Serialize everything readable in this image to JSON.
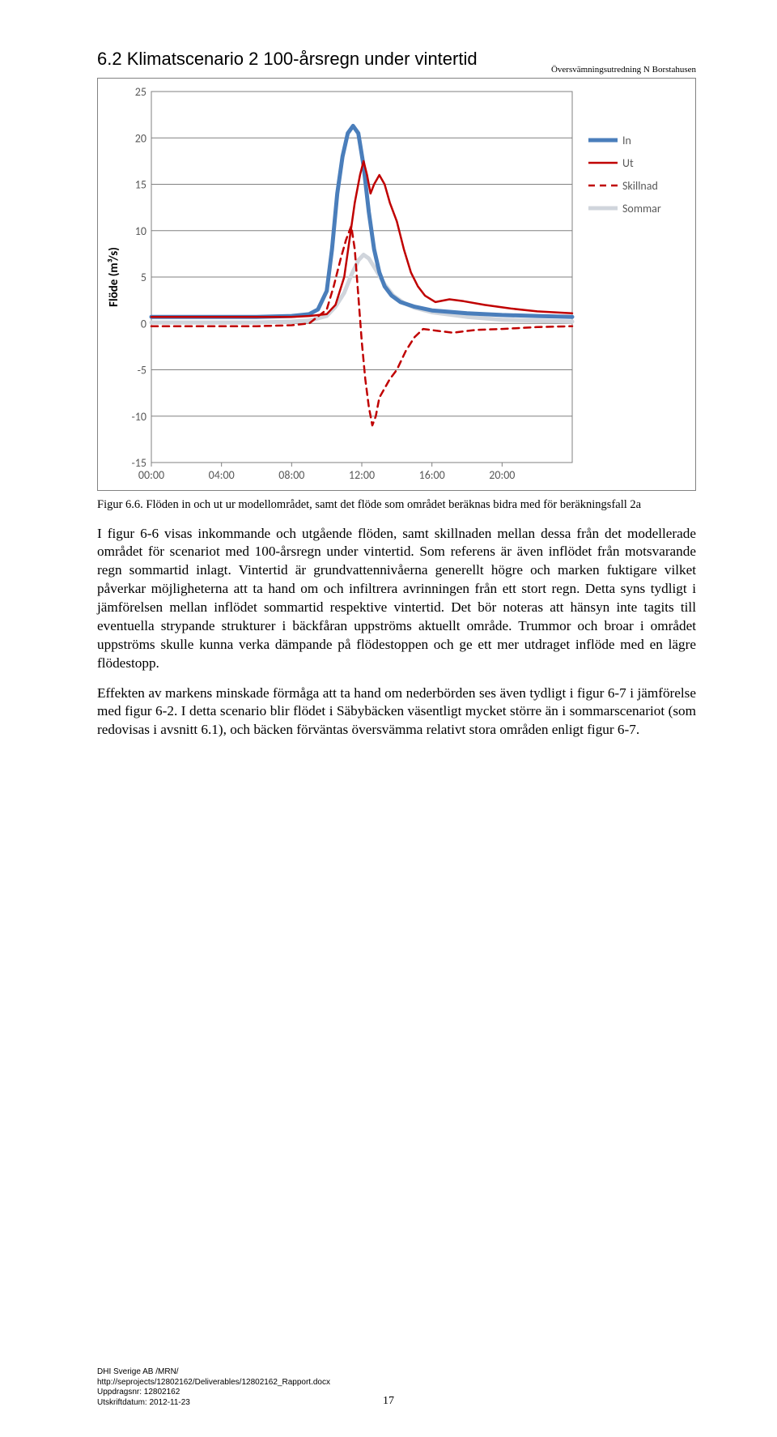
{
  "header": {
    "doc_title": "Översvämningsutredning N Borstahusen"
  },
  "section": {
    "heading": "6.2  Klimatscenario 2 100-årsregn under vintertid"
  },
  "chart": {
    "type": "line",
    "ylabel": "Flöde (m³/s)",
    "ylabel_fontsize": 15,
    "xlabels": [
      "00:00",
      "04:00",
      "08:00",
      "12:00",
      "16:00",
      "20:00"
    ],
    "yticks": [
      -15,
      -10,
      -5,
      0,
      5,
      10,
      15,
      20,
      25
    ],
    "xlim": [
      0,
      24
    ],
    "ylim": [
      -15,
      25
    ],
    "grid_color": "#808080",
    "border_color": "#828282",
    "background_color": "#ffffff",
    "tick_fontsize": 14,
    "legend_fontsize": 14,
    "line_width_thick": 5,
    "line_width_thin": 2.5,
    "series": [
      {
        "name": "In",
        "color": "#4a7ebb",
        "width": 5,
        "dash": "none",
        "points": [
          [
            0,
            0.7
          ],
          [
            2,
            0.7
          ],
          [
            4,
            0.7
          ],
          [
            6,
            0.7
          ],
          [
            8,
            0.8
          ],
          [
            9,
            1.0
          ],
          [
            9.5,
            1.5
          ],
          [
            10,
            3.5
          ],
          [
            10.3,
            8
          ],
          [
            10.6,
            14
          ],
          [
            10.9,
            18
          ],
          [
            11.2,
            20.5
          ],
          [
            11.5,
            21.3
          ],
          [
            11.8,
            20.5
          ],
          [
            12.1,
            17
          ],
          [
            12.4,
            12
          ],
          [
            12.7,
            8
          ],
          [
            13,
            5.5
          ],
          [
            13.3,
            4
          ],
          [
            13.7,
            3
          ],
          [
            14.2,
            2.3
          ],
          [
            15,
            1.8
          ],
          [
            16,
            1.4
          ],
          [
            18,
            1.1
          ],
          [
            20,
            0.9
          ],
          [
            22,
            0.8
          ],
          [
            24,
            0.7
          ]
        ]
      },
      {
        "name": "Ut",
        "color": "#c00000",
        "width": 2.5,
        "dash": "none",
        "points": [
          [
            0,
            0.7
          ],
          [
            2,
            0.7
          ],
          [
            4,
            0.7
          ],
          [
            6,
            0.7
          ],
          [
            8,
            0.7
          ],
          [
            9,
            0.8
          ],
          [
            10,
            1.0
          ],
          [
            10.5,
            2
          ],
          [
            11,
            5
          ],
          [
            11.3,
            9
          ],
          [
            11.6,
            13
          ],
          [
            11.9,
            16
          ],
          [
            12.1,
            17.5
          ],
          [
            12.3,
            16
          ],
          [
            12.5,
            14
          ],
          [
            12.7,
            15
          ],
          [
            13,
            16
          ],
          [
            13.3,
            15
          ],
          [
            13.6,
            13
          ],
          [
            14,
            11
          ],
          [
            14.4,
            8
          ],
          [
            14.8,
            5.5
          ],
          [
            15.2,
            4
          ],
          [
            15.6,
            3
          ],
          [
            16.2,
            2.3
          ],
          [
            17,
            2.6
          ],
          [
            17.8,
            2.4
          ],
          [
            19,
            2
          ],
          [
            20.5,
            1.6
          ],
          [
            22,
            1.3
          ],
          [
            24,
            1.1
          ]
        ]
      },
      {
        "name": "Skillnad",
        "color": "#c00000",
        "width": 2.5,
        "dash": "8 6",
        "points": [
          [
            0,
            -0.3
          ],
          [
            2,
            -0.3
          ],
          [
            4,
            -0.3
          ],
          [
            6,
            -0.3
          ],
          [
            8,
            -0.2
          ],
          [
            9,
            0
          ],
          [
            10,
            1.5
          ],
          [
            10.4,
            4
          ],
          [
            10.8,
            7
          ],
          [
            11.1,
            9
          ],
          [
            11.4,
            10.5
          ],
          [
            11.6,
            8
          ],
          [
            11.8,
            3
          ],
          [
            12,
            -2
          ],
          [
            12.2,
            -6
          ],
          [
            12.4,
            -9
          ],
          [
            12.6,
            -11
          ],
          [
            12.8,
            -10
          ],
          [
            13,
            -8
          ],
          [
            13.3,
            -7
          ],
          [
            13.6,
            -6
          ],
          [
            14,
            -5
          ],
          [
            14.5,
            -3
          ],
          [
            15,
            -1.5
          ],
          [
            15.5,
            -0.6
          ],
          [
            16.3,
            -0.8
          ],
          [
            17.2,
            -1.0
          ],
          [
            18.5,
            -0.7
          ],
          [
            20,
            -0.6
          ],
          [
            22,
            -0.4
          ],
          [
            24,
            -0.3
          ]
        ]
      },
      {
        "name": "Sommar",
        "color": "#d0d5dc",
        "width": 5,
        "dash": "none",
        "points": [
          [
            0,
            0.1
          ],
          [
            2,
            0.1
          ],
          [
            4,
            0.1
          ],
          [
            6,
            0.1
          ],
          [
            8,
            0.2
          ],
          [
            9,
            0.3
          ],
          [
            10,
            0.8
          ],
          [
            10.5,
            1.8
          ],
          [
            11,
            3.3
          ],
          [
            11.4,
            5.2
          ],
          [
            11.8,
            6.8
          ],
          [
            12.1,
            7.4
          ],
          [
            12.4,
            7.0
          ],
          [
            12.8,
            5.8
          ],
          [
            13.3,
            4.2
          ],
          [
            13.8,
            3.0
          ],
          [
            14.4,
            2.2
          ],
          [
            15,
            1.7
          ],
          [
            16,
            1.2
          ],
          [
            18,
            0.7
          ],
          [
            20,
            0.4
          ],
          [
            22,
            0.3
          ],
          [
            24,
            0.2
          ]
        ]
      }
    ],
    "legend": [
      "In",
      "Ut",
      "Skillnad",
      "Sommar"
    ]
  },
  "caption": {
    "label": "Figur 6.6.",
    "text": "Flöden in och ut ur modellområdet, samt det flöde som området beräknas bidra med för beräkningsfall 2a"
  },
  "paragraphs": {
    "p1": "I figur 6-6 visas inkommande och utgående flöden, samt skillnaden mellan dessa från det modellerade området för scenariot med 100-årsregn under vintertid. Som referens är även inflödet från motsvarande regn sommartid inlagt. Vintertid är grundvattennivåerna generellt högre och marken fuktigare vilket påverkar möjligheterna att ta hand om och infiltrera avrinningen från ett stort regn. Detta syns tydligt i jämförelsen mellan inflödet sommartid respektive vintertid. Det bör noteras att hänsyn inte tagits till eventuella stry­pande strukturer i bäckfåran uppströms aktuellt område. Trummor och broar i området uppströms skulle kunna verka dämpande på flödestoppen och ge ett mer utdraget in­flöde med en lägre flödestopp.",
    "p2": "Effekten av markens minskade förmåga att ta hand om nederbörden ses även tydligt i figur 6-7 i jämförelse med figur 6-2. I detta scenario blir flödet i Säbybäcken väsentligt mycket större än i sommarscenariot (som redovisas i avsnitt 6.1), och bäcken förväntas översvämma relativt stora områden enligt figur 6-7."
  },
  "footer": {
    "line1": "DHI Sverige AB /MRN/",
    "line2": "http://seprojects/12802162/Deliverables/12802162_Rapport.docx",
    "line3": "Uppdragsnr: 12802162",
    "line4": "Utskriftdatum: 2012-11-23"
  },
  "page_number": "17"
}
